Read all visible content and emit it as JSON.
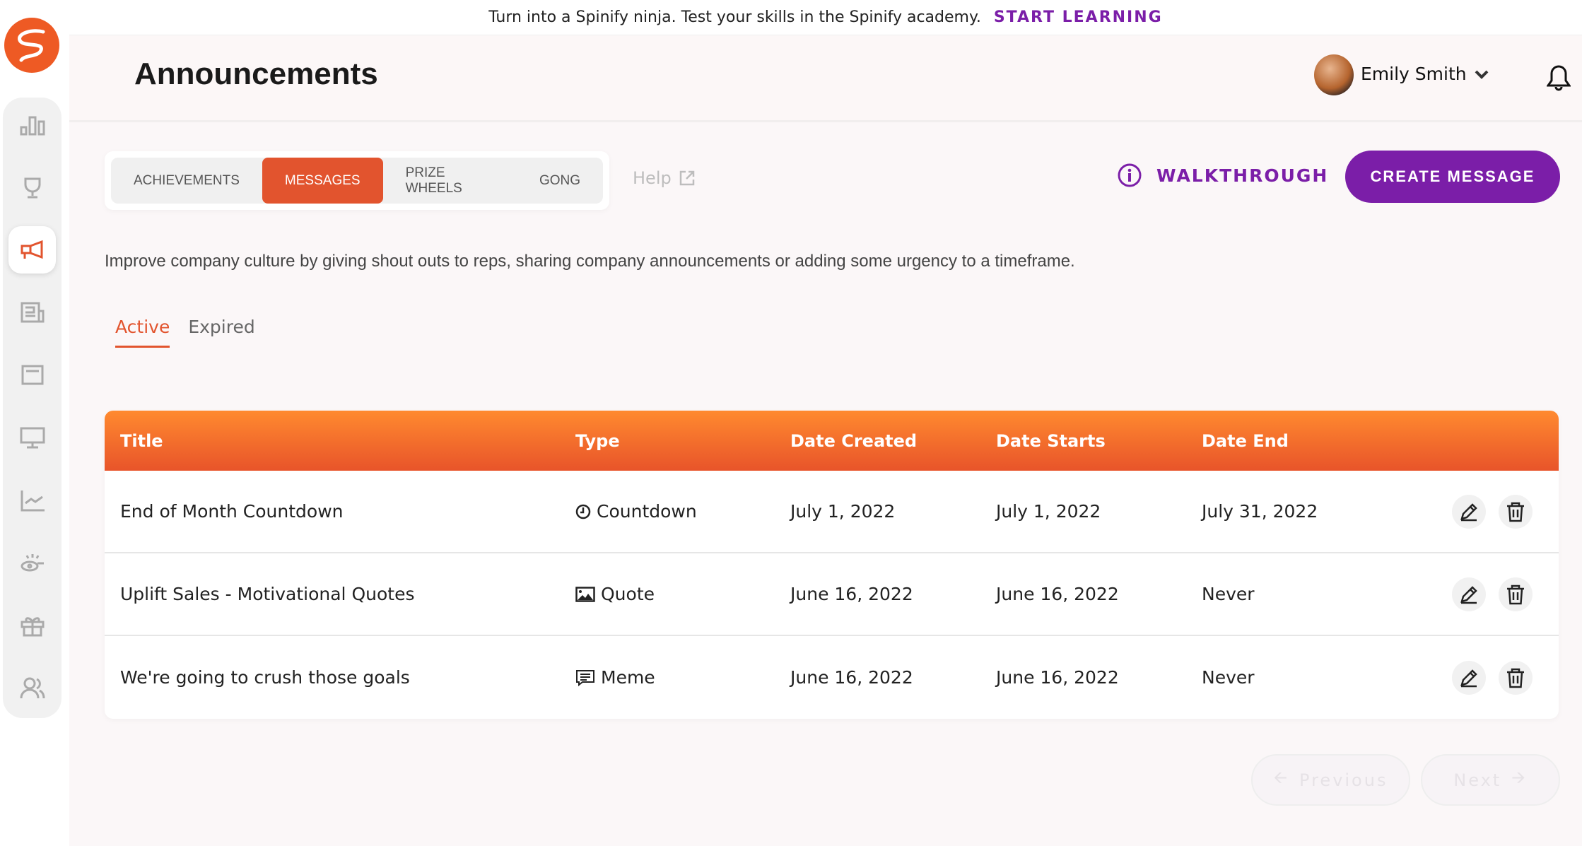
{
  "banner": {
    "text": "Turn into a Spinify ninja. Test your skills in the Spinify academy.",
    "cta": "START LEARNING"
  },
  "sidebar": {
    "items": [
      "leaderboards-icon",
      "competitions-icon",
      "announcements-icon",
      "news-icon",
      "tv-icon",
      "monitor-icon",
      "reports-icon",
      "coaching-icon",
      "rewards-icon",
      "users-icon"
    ],
    "active": "announcements-icon"
  },
  "header": {
    "title": "Announcements",
    "user": "Emily Smith"
  },
  "tabs": [
    {
      "label": "ACHIEVEMENTS"
    },
    {
      "label": "MESSAGES",
      "active": true
    },
    {
      "label": "PRIZE WHEELS"
    },
    {
      "label": "GONG"
    }
  ],
  "help": "Help",
  "walkthrough": "WALKTHROUGH",
  "create": "CREATE MESSAGE",
  "description": "Improve company culture by giving shout outs to reps, sharing company announcements or adding some urgency to a timeframe.",
  "subtabs": [
    {
      "label": "Active",
      "active": true
    },
    {
      "label": "Expired"
    }
  ],
  "table": {
    "columns": [
      "Title",
      "Type",
      "Date Created",
      "Date Starts",
      "Date End"
    ],
    "rows": [
      {
        "title": "End of Month Countdown",
        "type": "Countdown",
        "type_icon": "clock-icon",
        "created": "July 1, 2022",
        "starts": "July 1, 2022",
        "ends": "July 31, 2022"
      },
      {
        "title": "Uplift Sales - Motivational Quotes",
        "type": "Quote",
        "type_icon": "image-icon",
        "created": "June 16, 2022",
        "starts": "June 16, 2022",
        "ends": "Never"
      },
      {
        "title": "We're going to crush those goals",
        "type": "Meme",
        "type_icon": "comment-icon",
        "created": "June 16, 2022",
        "starts": "June 16, 2022",
        "ends": "Never"
      }
    ]
  },
  "pagination": {
    "previous": "Previous",
    "next": "Next"
  },
  "colors": {
    "accent": "#e2542e",
    "purple": "#7b1ea8"
  }
}
